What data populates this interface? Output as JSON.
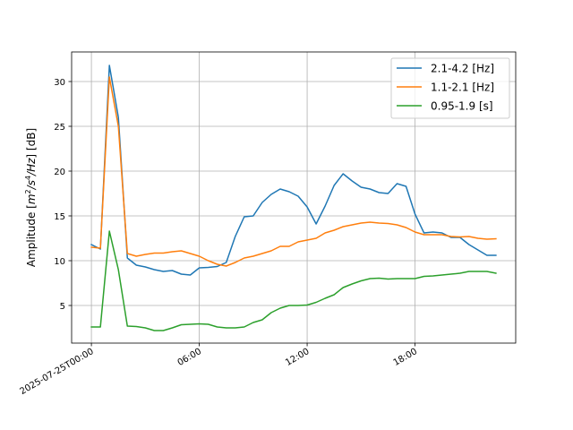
{
  "chart_data": {
    "type": "line",
    "title": "",
    "xlabel": "",
    "ylabel": "Amplitude [m²/s⁴/Hz] [dB]",
    "ylabel_parts": {
      "prefix": "Amplitude [",
      "m": "m",
      "exp2": "2",
      "s": "/s",
      "exp4": "4",
      "hz": "/Hz",
      "suffix": "] [dB]"
    },
    "x_hours": [
      0,
      0.5,
      1,
      1.5,
      2,
      2.5,
      3,
      3.5,
      4,
      4.5,
      5,
      5.5,
      6,
      6.5,
      7,
      7.5,
      8,
      8.5,
      9,
      9.5,
      10,
      10.5,
      11,
      11.5,
      12,
      12.5,
      13,
      13.5,
      14,
      14.5,
      15,
      15.5,
      16,
      16.5,
      17,
      17.5,
      18,
      18.5,
      19,
      19.5,
      20,
      20.5,
      21,
      21.5,
      22,
      22.5
    ],
    "xlim": [
      -1.1,
      23.6
    ],
    "ylim": [
      0.8,
      33.3
    ],
    "xticks": [
      {
        "hour": 0,
        "label": "2025-07-25T00:00"
      },
      {
        "hour": 6,
        "label": "06:00"
      },
      {
        "hour": 12,
        "label": "12:00"
      },
      {
        "hour": 18,
        "label": "18:00"
      }
    ],
    "yticks": [
      {
        "value": 5,
        "label": "5"
      },
      {
        "value": 10,
        "label": "10"
      },
      {
        "value": 15,
        "label": "15"
      },
      {
        "value": 20,
        "label": "20"
      },
      {
        "value": 25,
        "label": "25"
      },
      {
        "value": 30,
        "label": "30"
      }
    ],
    "grid": true,
    "legend_position": "top-right",
    "series": [
      {
        "name": "2.1-4.2 [Hz]",
        "color": "#1f77b4",
        "values": [
          11.8,
          11.3,
          31.8,
          26.0,
          10.3,
          9.5,
          9.3,
          9.0,
          8.8,
          8.9,
          8.5,
          8.4,
          9.2,
          9.25,
          9.35,
          9.8,
          12.7,
          14.9,
          15.0,
          16.5,
          17.4,
          18.0,
          17.7,
          17.2,
          16.0,
          14.1,
          16.1,
          18.4,
          19.7,
          18.9,
          18.2,
          18.0,
          17.6,
          17.5,
          18.6,
          18.3,
          15.2,
          13.1,
          13.2,
          13.1,
          12.6,
          12.6,
          11.8,
          11.2,
          10.6,
          10.6
        ]
      },
      {
        "name": "1.1-2.1 [Hz]",
        "color": "#ff7f0e",
        "values": [
          11.5,
          11.4,
          30.5,
          25.0,
          10.8,
          10.5,
          10.7,
          10.85,
          10.85,
          11.0,
          11.1,
          10.8,
          10.5,
          10.0,
          9.6,
          9.4,
          9.8,
          10.3,
          10.5,
          10.8,
          11.1,
          11.6,
          11.6,
          12.1,
          12.3,
          12.5,
          13.1,
          13.4,
          13.8,
          14.0,
          14.2,
          14.3,
          14.2,
          14.15,
          14.0,
          13.7,
          13.2,
          12.9,
          12.9,
          12.9,
          12.7,
          12.65,
          12.7,
          12.5,
          12.4,
          12.45
        ]
      },
      {
        "name": "0.95-1.9 [s]",
        "color": "#2ca02c",
        "values": [
          2.6,
          2.6,
          13.3,
          9.0,
          2.7,
          2.65,
          2.5,
          2.2,
          2.2,
          2.5,
          2.85,
          2.9,
          2.95,
          2.9,
          2.6,
          2.5,
          2.5,
          2.6,
          3.1,
          3.4,
          4.2,
          4.7,
          5.0,
          5.0,
          5.05,
          5.35,
          5.8,
          6.2,
          7.0,
          7.4,
          7.75,
          8.0,
          8.05,
          7.95,
          8.0,
          8.0,
          8.0,
          8.25,
          8.3,
          8.4,
          8.5,
          8.6,
          8.8,
          8.8,
          8.8,
          8.6
        ]
      }
    ]
  }
}
